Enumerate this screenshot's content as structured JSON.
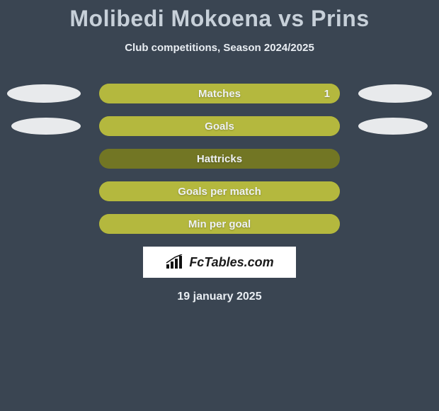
{
  "header": {
    "title": "Molibedi Mokoena vs Prins",
    "subtitle": "Club competitions, Season 2024/2025",
    "title_color": "#c7d0d9",
    "subtitle_color": "#e8edf2",
    "title_fontsize": 32,
    "subtitle_fontsize": 15
  },
  "background_color": "#3a4552",
  "bar_base_color": "#727624",
  "bar_fill_color": "#b4b83e",
  "ellipse_color": "#e8eaec",
  "stats": [
    {
      "label": "Matches",
      "left_ellipse": {
        "show": true,
        "w": 104,
        "h": 26
      },
      "right_ellipse": {
        "show": true,
        "w": 104,
        "h": 26
      },
      "fill_side": "right",
      "fill_pct": 100,
      "value": "1",
      "value_side": "right"
    },
    {
      "label": "Goals",
      "left_ellipse": {
        "show": true,
        "w": 98,
        "h": 24
      },
      "right_ellipse": {
        "show": true,
        "w": 98,
        "h": 24
      },
      "fill_side": "center",
      "fill_pct": 100,
      "value": "",
      "value_side": "none"
    },
    {
      "label": "Hattricks",
      "left_ellipse": {
        "show": false,
        "w": 104,
        "h": 26
      },
      "right_ellipse": {
        "show": false,
        "w": 104,
        "h": 26
      },
      "fill_side": "none",
      "fill_pct": 0,
      "value": "",
      "value_side": "none"
    },
    {
      "label": "Goals per match",
      "left_ellipse": {
        "show": false,
        "w": 104,
        "h": 26
      },
      "right_ellipse": {
        "show": false,
        "w": 104,
        "h": 26
      },
      "fill_side": "center",
      "fill_pct": 100,
      "value": "",
      "value_side": "none"
    },
    {
      "label": "Min per goal",
      "left_ellipse": {
        "show": false,
        "w": 104,
        "h": 26
      },
      "right_ellipse": {
        "show": false,
        "w": 104,
        "h": 26
      },
      "fill_side": "center",
      "fill_pct": 100,
      "value": "",
      "value_side": "none"
    }
  ],
  "watermark": {
    "text": "FcTables.com",
    "icon": "bar-chart-icon"
  },
  "footer": {
    "date": "19 january 2025"
  }
}
